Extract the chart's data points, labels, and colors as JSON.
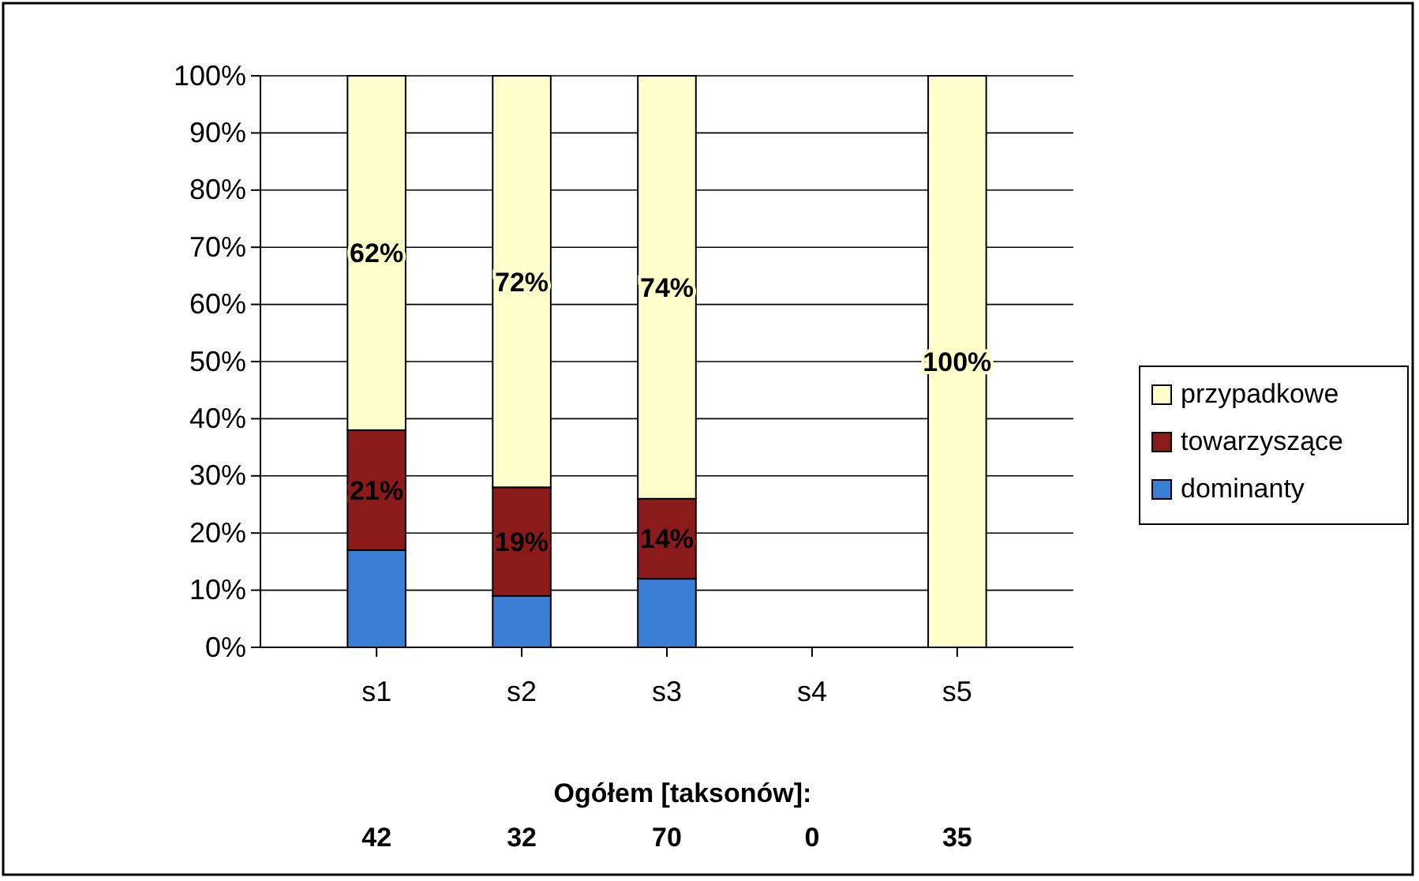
{
  "chart_data": {
    "type": "bar",
    "stacked": true,
    "categories": [
      "s1",
      "s2",
      "s3",
      "s4",
      "s5"
    ],
    "series": [
      {
        "name": "dominanty",
        "color": "#3a7fd5",
        "values": [
          17,
          9,
          12,
          0,
          0
        ],
        "value_labels": [
          null,
          null,
          null,
          null,
          null
        ]
      },
      {
        "name": "towarzyszące",
        "color": "#8b1a1a",
        "values": [
          21,
          19,
          14,
          0,
          0
        ],
        "value_labels": [
          "21%",
          "19%",
          "14%",
          null,
          null
        ]
      },
      {
        "name": "przypadkowe",
        "color": "#ffffcc",
        "values": [
          62,
          72,
          74,
          0,
          100
        ],
        "value_labels": [
          "62%",
          "72%",
          "74%",
          null,
          "100%"
        ]
      }
    ],
    "ylim": [
      0,
      100
    ],
    "yticks": [
      {
        "value": 0,
        "label": "0%"
      },
      {
        "value": 10,
        "label": "10%"
      },
      {
        "value": 20,
        "label": "20%"
      },
      {
        "value": 30,
        "label": "30%"
      },
      {
        "value": 40,
        "label": "40%"
      },
      {
        "value": 50,
        "label": "50%"
      },
      {
        "value": 60,
        "label": "60%"
      },
      {
        "value": 70,
        "label": "70%"
      },
      {
        "value": 80,
        "label": "80%"
      },
      {
        "value": 90,
        "label": "90%"
      },
      {
        "value": 100,
        "label": "100%"
      }
    ],
    "grid": "y",
    "legend": "right",
    "annotations": [
      "Ogółem [taksonów]:",
      "42",
      "32",
      "70",
      "0",
      "35"
    ]
  }
}
